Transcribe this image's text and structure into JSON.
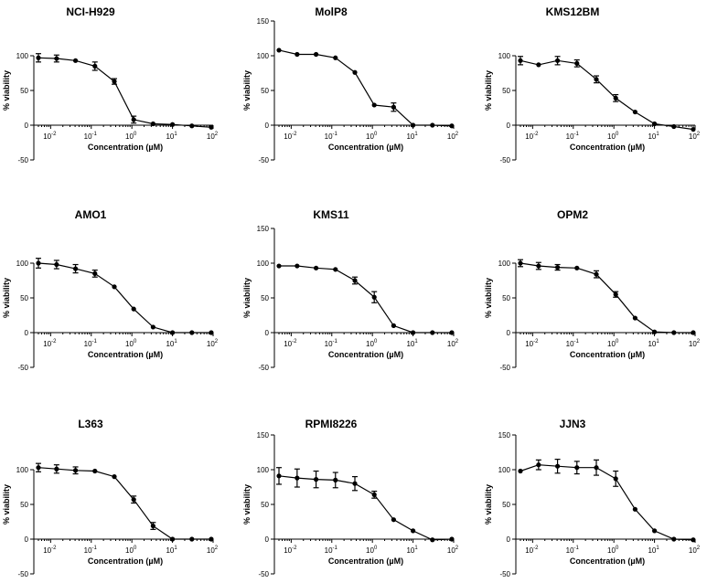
{
  "figure": {
    "x_exponents": [
      "-2",
      "-1",
      "0",
      "1",
      "2"
    ],
    "x_base": "10"
  },
  "chart_data": [
    {
      "type": "line",
      "title": "NCI-H929",
      "xlabel": "Concentration (µM)",
      "ylabel": "% viability",
      "xscale": "log",
      "xlim": [
        0.005,
        100
      ],
      "ylim": [
        -50,
        100
      ],
      "yticks": [
        -50,
        0,
        50,
        100
      ],
      "x": [
        0.005,
        0.014,
        0.041,
        0.123,
        0.37,
        1.11,
        3.33,
        10,
        30,
        90
      ],
      "y": [
        97,
        96,
        93,
        85,
        63,
        8,
        2,
        1,
        -1,
        -3
      ],
      "err": [
        6,
        5,
        0,
        6,
        4,
        5,
        0,
        0,
        0,
        0
      ]
    },
    {
      "type": "line",
      "title": "MolP8",
      "xlabel": "Concentration (µM)",
      "ylabel": "% viability",
      "xscale": "log",
      "xlim": [
        0.005,
        100
      ],
      "ylim": [
        -50,
        150
      ],
      "yticks": [
        -50,
        0,
        50,
        100,
        150
      ],
      "x": [
        0.005,
        0.014,
        0.041,
        0.123,
        0.37,
        1.11,
        3.33,
        10,
        30,
        90
      ],
      "y": [
        108,
        102,
        102,
        97,
        76,
        29,
        26,
        0,
        0,
        -1
      ],
      "err": [
        0,
        0,
        0,
        0,
        0,
        0,
        6,
        0,
        0,
        0
      ]
    },
    {
      "type": "line",
      "title": "KMS12BM",
      "xlabel": "Concentration (µM)",
      "ylabel": "% viability",
      "xscale": "log",
      "xlim": [
        0.005,
        100
      ],
      "ylim": [
        -50,
        100
      ],
      "yticks": [
        -50,
        0,
        50,
        100
      ],
      "x": [
        0.005,
        0.014,
        0.041,
        0.123,
        0.37,
        1.11,
        3.33,
        10,
        30,
        90
      ],
      "y": [
        93,
        87,
        93,
        89,
        66,
        39,
        19,
        2,
        -2,
        -6
      ],
      "err": [
        6,
        0,
        6,
        5,
        5,
        5,
        0,
        0,
        0,
        0
      ]
    },
    {
      "type": "line",
      "title": "AMO1",
      "xlabel": "Concentration (µM)",
      "ylabel": "% viability",
      "xscale": "log",
      "xlim": [
        0.005,
        100
      ],
      "ylim": [
        -50,
        100
      ],
      "yticks": [
        -50,
        0,
        50,
        100
      ],
      "x": [
        0.005,
        0.014,
        0.041,
        0.123,
        0.37,
        1.11,
        3.33,
        10,
        30,
        90
      ],
      "y": [
        100,
        98,
        92,
        85,
        66,
        34,
        8,
        0,
        0,
        0
      ],
      "err": [
        7,
        6,
        6,
        5,
        0,
        0,
        0,
        0,
        0,
        0
      ]
    },
    {
      "type": "line",
      "title": "KMS11",
      "xlabel": "Concentration (µM)",
      "ylabel": "% viability",
      "xscale": "log",
      "xlim": [
        0.005,
        100
      ],
      "ylim": [
        -50,
        150
      ],
      "yticks": [
        -50,
        0,
        50,
        100,
        150
      ],
      "x": [
        0.005,
        0.014,
        0.041,
        0.123,
        0.37,
        1.11,
        3.33,
        10,
        30,
        90
      ],
      "y": [
        96,
        96,
        93,
        91,
        75,
        51,
        10,
        0,
        0,
        0
      ],
      "err": [
        0,
        0,
        0,
        0,
        5,
        8,
        0,
        0,
        0,
        0
      ]
    },
    {
      "type": "line",
      "title": "OPM2",
      "xlabel": "Concentration (µM)",
      "ylabel": "% viability",
      "xscale": "log",
      "xlim": [
        0.005,
        100
      ],
      "ylim": [
        -50,
        100
      ],
      "yticks": [
        -50,
        0,
        50,
        100
      ],
      "x": [
        0.005,
        0.014,
        0.041,
        0.123,
        0.37,
        1.11,
        3.33,
        10,
        30,
        90
      ],
      "y": [
        100,
        96,
        94,
        93,
        84,
        55,
        21,
        1,
        0,
        0
      ],
      "err": [
        5,
        5,
        4,
        0,
        5,
        4,
        0,
        0,
        0,
        0
      ]
    },
    {
      "type": "line",
      "title": "L363",
      "xlabel": "Concentration (µM)",
      "ylabel": "% viability",
      "xscale": "log",
      "xlim": [
        0.005,
        100
      ],
      "ylim": [
        -50,
        100
      ],
      "yticks": [
        -50,
        0,
        50,
        100
      ],
      "x": [
        0.005,
        0.014,
        0.041,
        0.123,
        0.37,
        1.11,
        3.33,
        10,
        30,
        90
      ],
      "y": [
        103,
        101,
        99,
        98,
        90,
        57,
        19,
        0,
        0,
        0
      ],
      "err": [
        6,
        6,
        5,
        0,
        0,
        5,
        5,
        0,
        0,
        0
      ]
    },
    {
      "type": "line",
      "title": "RPMI8226",
      "xlabel": "Concentration (µM)",
      "ylabel": "% viability",
      "xscale": "log",
      "xlim": [
        0.005,
        100
      ],
      "ylim": [
        -50,
        150
      ],
      "yticks": [
        -50,
        0,
        50,
        100,
        150
      ],
      "x": [
        0.005,
        0.014,
        0.041,
        0.123,
        0.37,
        1.11,
        3.33,
        10,
        30,
        90
      ],
      "y": [
        91,
        88,
        86,
        85,
        80,
        64,
        28,
        12,
        -1,
        0
      ],
      "err": [
        12,
        13,
        12,
        11,
        10,
        5,
        0,
        0,
        0,
        0
      ]
    },
    {
      "type": "line",
      "title": "JJN3",
      "xlabel": "Concentration (µM)",
      "ylabel": "% viability",
      "xscale": "log",
      "xlim": [
        0.005,
        100
      ],
      "ylim": [
        -50,
        150
      ],
      "yticks": [
        -50,
        0,
        50,
        100,
        150
      ],
      "x": [
        0.005,
        0.014,
        0.041,
        0.123,
        0.37,
        1.11,
        3.33,
        10,
        30,
        90
      ],
      "y": [
        98,
        107,
        105,
        103,
        103,
        87,
        43,
        12,
        0,
        -1
      ],
      "err": [
        0,
        7,
        10,
        9,
        11,
        11,
        0,
        0,
        0,
        0
      ]
    }
  ]
}
